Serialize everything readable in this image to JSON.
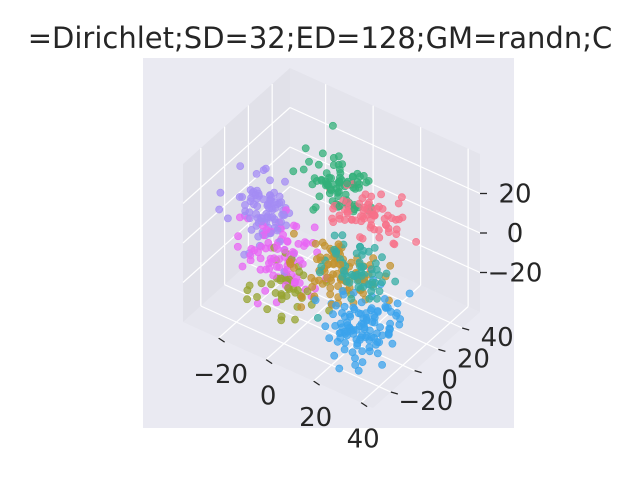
{
  "chart_data": {
    "type": "scatter",
    "projection": "3d",
    "title": "=Dirichlet;SD=32;ED=128;GM=randn;C",
    "xlabel": "",
    "ylabel": "",
    "zlabel": "",
    "xlim": [
      -35,
      45
    ],
    "ylim": [
      -35,
      55
    ],
    "zlim": [
      -40,
      40
    ],
    "x_ticks": [
      -20,
      0,
      20,
      40
    ],
    "y_ticks": [
      -20,
      0,
      20,
      40
    ],
    "z_ticks": [
      -20,
      0,
      20
    ],
    "x_tick_labels": [
      "−20",
      "0",
      "20",
      "40"
    ],
    "y_tick_labels": [
      "−20",
      "0",
      "20",
      "40"
    ],
    "z_tick_labels": [
      "−20",
      "0",
      "20"
    ],
    "grid": true,
    "legend": "none",
    "pane_color": "#eaeaf2",
    "series": [
      {
        "color": "#f77189",
        "center": [
          20,
          12,
          18
        ],
        "spread": [
          8,
          7,
          6
        ],
        "count": 70
      },
      {
        "color": "#36ada4",
        "center": [
          25,
          -8,
          5
        ],
        "spread": [
          7,
          7,
          6
        ],
        "count": 60
      },
      {
        "color": "#3ba3ec",
        "center": [
          30,
          -12,
          -20
        ],
        "spread": [
          7,
          8,
          7
        ],
        "count": 110
      },
      {
        "color": "#c39330",
        "center": [
          12,
          0,
          -8
        ],
        "spread": [
          8,
          7,
          6
        ],
        "count": 90
      },
      {
        "color": "#97a431",
        "center": [
          -5,
          -5,
          -22
        ],
        "spread": [
          7,
          7,
          6
        ],
        "count": 45
      },
      {
        "color": "#e866f4",
        "center": [
          -12,
          0,
          -12
        ],
        "spread": [
          7,
          7,
          7
        ],
        "count": 80
      },
      {
        "color": "#a48cf4",
        "center": [
          -22,
          8,
          -2
        ],
        "spread": [
          6,
          7,
          7
        ],
        "count": 90
      },
      {
        "color": "#33b07a",
        "center": [
          5,
          18,
          22
        ],
        "spread": [
          7,
          6,
          6
        ],
        "count": 80
      }
    ]
  }
}
